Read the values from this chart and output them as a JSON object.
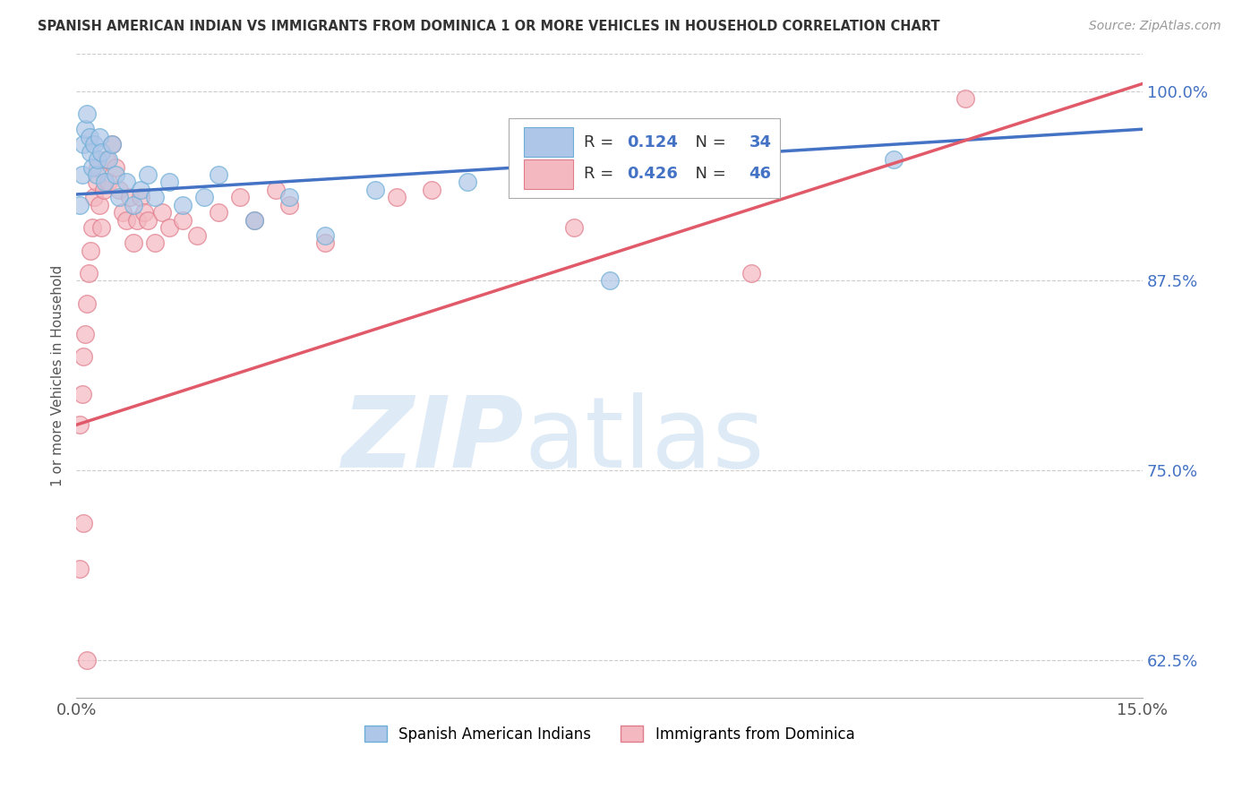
{
  "title": "SPANISH AMERICAN INDIAN VS IMMIGRANTS FROM DOMINICA 1 OR MORE VEHICLES IN HOUSEHOLD CORRELATION CHART",
  "source": "Source: ZipAtlas.com",
  "ylabel": "1 or more Vehicles in Household",
  "xlim": [
    0.0,
    15.0
  ],
  "ylim": [
    60.0,
    102.5
  ],
  "yticks": [
    62.5,
    75.0,
    87.5,
    100.0
  ],
  "ytick_labels": [
    "62.5%",
    "75.0%",
    "87.5%",
    "100.0%"
  ],
  "xtick_labels": [
    "0.0%",
    "15.0%"
  ],
  "series1_color": "#aec6e8",
  "series1_edge": "#6baed6",
  "series2_color": "#f4b8c1",
  "series2_edge": "#e07b8a",
  "line1_color": "#4472c4",
  "line2_color": "#e05a6a",
  "r1": "0.124",
  "n1": "34",
  "r2": "0.426",
  "n2": "46",
  "legend_label1": "Spanish American Indians",
  "legend_label2": "Immigrants from Dominica",
  "series1_x": [
    0.05,
    0.08,
    0.1,
    0.12,
    0.15,
    0.18,
    0.2,
    0.22,
    0.25,
    0.28,
    0.3,
    0.32,
    0.35,
    0.4,
    0.45,
    0.5,
    0.55,
    0.6,
    0.7,
    0.8,
    0.9,
    1.0,
    1.1,
    1.3,
    1.5,
    1.8,
    2.0,
    2.5,
    3.0,
    3.5,
    4.2,
    5.5,
    7.5,
    11.5
  ],
  "series1_y": [
    92.5,
    94.5,
    96.5,
    97.5,
    98.5,
    97.0,
    96.0,
    95.0,
    96.5,
    94.5,
    95.5,
    97.0,
    96.0,
    94.0,
    95.5,
    96.5,
    94.5,
    93.0,
    94.0,
    92.5,
    93.5,
    94.5,
    93.0,
    94.0,
    92.5,
    93.0,
    94.5,
    91.5,
    93.0,
    90.5,
    93.5,
    94.0,
    87.5,
    95.5
  ],
  "series2_x": [
    0.05,
    0.08,
    0.1,
    0.12,
    0.15,
    0.17,
    0.2,
    0.22,
    0.25,
    0.28,
    0.3,
    0.32,
    0.35,
    0.38,
    0.42,
    0.45,
    0.5,
    0.55,
    0.6,
    0.65,
    0.7,
    0.75,
    0.8,
    0.85,
    0.9,
    0.95,
    1.0,
    1.1,
    1.2,
    1.3,
    1.5,
    1.7,
    2.0,
    2.3,
    2.5,
    2.8,
    3.0,
    3.5,
    4.5,
    5.0,
    7.0,
    9.5,
    12.5,
    0.05,
    0.1,
    0.15
  ],
  "series2_y": [
    78.0,
    80.0,
    82.5,
    84.0,
    86.0,
    88.0,
    89.5,
    91.0,
    93.0,
    94.0,
    95.0,
    92.5,
    91.0,
    93.5,
    95.5,
    94.0,
    96.5,
    95.0,
    93.5,
    92.0,
    91.5,
    93.0,
    90.0,
    91.5,
    93.0,
    92.0,
    91.5,
    90.0,
    92.0,
    91.0,
    91.5,
    90.5,
    92.0,
    93.0,
    91.5,
    93.5,
    92.5,
    90.0,
    93.0,
    93.5,
    91.0,
    88.0,
    99.5,
    68.5,
    71.5,
    62.5
  ],
  "line1_x0": 0.0,
  "line1_y0": 93.2,
  "line1_x1": 15.0,
  "line1_y1": 97.5,
  "line2_x0": 0.0,
  "line2_y0": 78.0,
  "line2_x1": 15.0,
  "line2_y1": 100.5
}
